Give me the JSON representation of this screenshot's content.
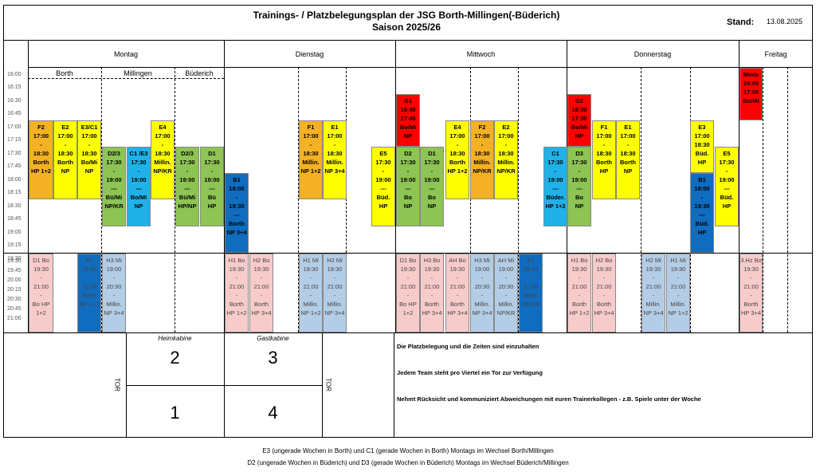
{
  "header": {
    "title_line1": "Trainings- / Platzbelegungsplan der JSG Borth-Millingen(-Büderich)",
    "title_line2": "Saison 2025/26",
    "stand_label": "Stand:",
    "stand_date": "13.08.2025"
  },
  "days": [
    "Montag",
    "Dienstag",
    "Mittwoch",
    "Donnerstag",
    "Freitag"
  ],
  "montag_locations": [
    "Borth",
    "Millingen",
    "Büderich"
  ],
  "times_top": [
    "16:00",
    "16:30",
    "17:00",
    "17:30",
    "18:00",
    "18:30",
    "19:00",
    "19:30"
  ],
  "times_top_half": [
    "16:15",
    "16:45",
    "17:15",
    "17:45",
    "18:15",
    "18:45",
    "19:15"
  ],
  "times_bottom": [
    "19:30",
    "20:00",
    "20:30",
    "21:00"
  ],
  "times_bottom_half": [
    "19:45",
    "20:15",
    "20:45"
  ],
  "colors": {
    "orange": "#f4b123",
    "yellow": "#ffff00",
    "green": "#8dc453",
    "cyan": "#1fb2e8",
    "blue": "#0f6cbf",
    "red": "#ff0000",
    "pink": "#f8cbcb",
    "lightblue": "#b4cde6"
  },
  "blocks_top": [
    {
      "text": "F2\n17:00\n-\n18:30\nBorth\nHP 1+2"
    },
    {
      "text": "E2\n17:00\n-\n18:30\nBorth\nNP"
    },
    {
      "text": "E3/C1\n17:00\n-\n18:30\nBo/Mi\nNP"
    },
    {
      "text": "D2/3\n17:30\n-\n19:00\n---\nBü/Mi\nNP/KR"
    },
    {
      "text": "C1 /E3\n17:30\n-\n19:00\n---\nBo/Mi\nNP"
    },
    {
      "text": "E4\n17:00\n-\n18:30\nMillin.\nNP/KR"
    },
    {
      "text": "D2/3\n17:30\n-\n19:00\n---\nBü/Mi\nHP/NP"
    },
    {
      "text": "D1\n17:30\n-\n19:00\n---\nBü\nHP"
    },
    {
      "text": "B1\n18:00\n-\n19:30\n---\nBorth\nNP 3+4"
    },
    {
      "text": "F1\n17:00\n-\n18:30\nMillin.\nNP 1+2"
    },
    {
      "text": "E1\n17:00\n-\n18:30\nMillin.\nNP 3+4"
    },
    {
      "text": "G1\n16:45\n17:45\nBo/Mi\nNP"
    },
    {
      "text": "E5\n17:30\n-\n19:00\n---\nBüd.\nHP"
    },
    {
      "text": "D2\n17:30\n-\n19:00\n---\nBo\nNP"
    },
    {
      "text": "D1\n17:30\n-\n19:00\n---\nBo\nNP"
    },
    {
      "text": "E4\n17:00\n-\n18:30\nBorth\nHP 1+2"
    },
    {
      "text": "F2\n17:00\n-\n18:30\nMillin.\nNP/KR"
    },
    {
      "text": "E2\n17:00\n-\n18:30\nMillin.\nNP/KR"
    },
    {
      "text": "C1\n17:30\n-\n19:00\n---\nBüder.\nHP 1+2"
    },
    {
      "text": "G2\n16:30\n17:30\nBo/Mi\nHP"
    },
    {
      "text": "D3\n17:30\n-\n19:00\n---\nBo\nNP"
    },
    {
      "text": "F1\n17:00\n-\n18:30\nBorth\nHP"
    },
    {
      "text": "E1\n17:00\n-\n18:30\nBorth\nNP"
    },
    {
      "text": "E3\n17:00\n18:30\nBüd. HP"
    },
    {
      "text": "B1\n18:00\n-\n19:30\n---\nBüd. HP"
    },
    {
      "text": "E5\n17:30\n-\n19:00\n---\nBüd.\nHP"
    },
    {
      "text": "Minis\n16:00\n17:00\nBo/Mi"
    }
  ],
  "blocks_bottom": [
    {
      "text": "D1 Bo\n19:30\n-\n21:00\n-\nBo HP\n1+2"
    },
    {
      "text": "A1\n19:30\n-\n21:00\nBorth\nNP 1+2"
    },
    {
      "text": "H3 Mi\n19:00\n-\n20:30\n-\nMillin.\nNP 3+4"
    },
    {
      "text": "H1 Bo\n19:30\n-\n21:00\n-\nBorth\nHP 1+2"
    },
    {
      "text": "H2 Bo\n19:30\n-\n21:00\n-\nBorth\nHP 3+4"
    },
    {
      "text": "H1 Mi\n19:30\n-\n21:00\n-\nMillin.\nNP 1+2"
    },
    {
      "text": "H2 Mi\n19:30\n-\n21:00\n-\nMillin.\nNP 3+4"
    },
    {
      "text": "D1 Bo\n19:30\n-\n21:00\n-\nBo HP\n1+2"
    },
    {
      "text": "H3 Bo\n19:30\n-\n21:00\n-\nBorth\nHP 3+4"
    },
    {
      "text": "AH Bo\n19:30\n-\n21:00\n-\nBorth\nHP 3+4"
    },
    {
      "text": "H3 Mi\n19:00\n-\n20:30\n-\nMillin.\nNP 3+4"
    },
    {
      "text": "AH Mi\n19:00\n-\n20:30\n-\nMillin.\nNP/KR"
    },
    {
      "text": "A1\n19:30\n-\n21:00\nMillin.\nNP/KR"
    },
    {
      "text": "H1 Bo\n19:30\n-\n21:00\n-\nBorth\nHP 1+2"
    },
    {
      "text": "H2 Bo\n19:30\n-\n21:00\n-\nBorth\nHP 3+4"
    },
    {
      "text": "H2 Mi\n19:30\n-\n21:00\n-\nMillin.\nNP 3+4"
    },
    {
      "text": "H1 Mi\n19:30\n-\n21:00\n-\nMillin.\nNP 1+2"
    },
    {
      "text": "3.Hz Bo\n19:30\n-\n21:00\n-\nBorth\nHP 3+4"
    }
  ],
  "field": {
    "heimkabine": "Heimkabine",
    "gastkabine": "Gastkabine",
    "tor": "TOR",
    "quarters": [
      "2",
      "3",
      "1",
      "4"
    ]
  },
  "notes": [
    "Die Platzbelegung und die Zeiten sind einzuhalten",
    "Jedem Team steht pro Viertel ein Tor zur Verfügung",
    "Nehmt Rücksicht und kommuniziert Abweichungen mit euren Trainerkollegen - z.B. Spiele unter der Woche"
  ],
  "footer": [
    "E3 (ungerade Wochen in Borth) und C1 (gerade Wochen in Borth) Montags im Wechsel Borth/Millingen",
    "D2 (ungerade Wochen in Büderich) und D3 (gerade Wochen in Büderich) Montags im Wechsel Büderich/Millingen"
  ]
}
